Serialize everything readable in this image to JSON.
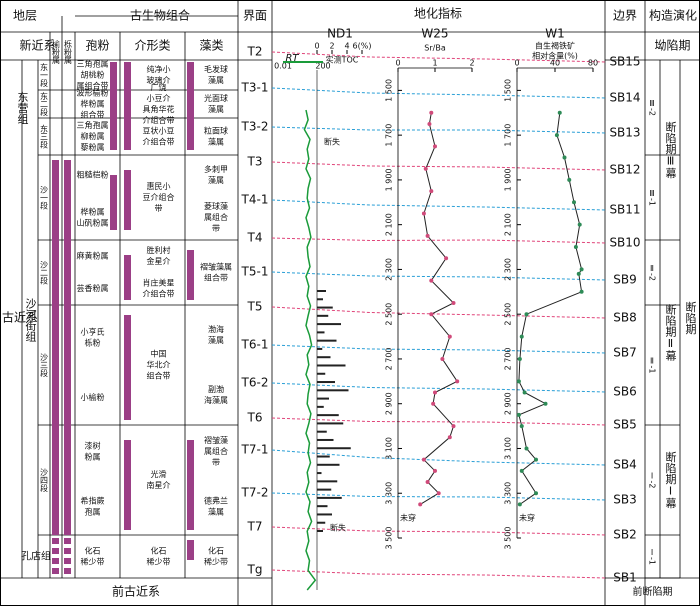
{
  "header": {
    "strata": "地层",
    "fossils": "古生物组合",
    "interface": "界面",
    "geochem": "地化指标",
    "boundary": "边界",
    "tectonic": "构造演化"
  },
  "fossil_heads": {
    "ulmi": "榆粉属",
    "querc": "栎粉属",
    "spore": "孢粉",
    "ostracod": "介形类",
    "algae": "藻类"
  },
  "strata": {
    "systems": [
      "新近系",
      "古近系",
      "前古近系"
    ],
    "formations": [
      "东营组",
      "沙河街组",
      "孔店组"
    ],
    "members": [
      "东一段",
      "东二段",
      "东三段",
      "沙一段",
      "沙二段",
      "沙三段",
      "沙四段"
    ]
  },
  "spores": [
    [
      "三角孢属",
      "胡桃粉",
      "属组合带"
    ],
    [
      "波形榆粉",
      "桦粉属",
      "组合带"
    ],
    [
      "三角孢属",
      "柳粉属",
      "藜粉属"
    ],
    [
      "粗糙桤粉"
    ],
    [
      "桦粉属",
      "山矾粉属"
    ],
    [
      "麻黄粉属"
    ],
    [
      "芸香粉属"
    ],
    [
      "小亨氏",
      "栎粉"
    ],
    [
      "小榆粉"
    ],
    [
      "漆树",
      "粉属"
    ],
    [
      "希指蕨",
      "孢属"
    ],
    [
      "化石",
      "稀少带"
    ]
  ],
  "ostracods": [
    [
      "纯净小",
      "玻璃介"
    ],
    [
      "广饶",
      "小豆介",
      "具角华花",
      "介组合带"
    ],
    [
      "豆状小豆",
      "介组合带"
    ],
    [
      "惠民小",
      "豆介组合",
      "带"
    ],
    [
      "胜利村",
      "金星介"
    ],
    [
      "肖庄美星",
      "介组合带"
    ],
    [
      "中国",
      "华北介",
      "组合带"
    ],
    [
      "光滑",
      "南星介"
    ],
    [
      "化石",
      "稀少带"
    ]
  ],
  "algae": [
    [
      "毛发球",
      "藻属"
    ],
    [
      "光面球",
      "藻属"
    ],
    [
      "粒面球",
      "藻属"
    ],
    [
      "多刺甲",
      "藻属"
    ],
    [
      "菱球藻",
      "属组合",
      "带"
    ],
    [
      "褶皱藻属",
      "组合带"
    ],
    [
      "渤海",
      "藻属"
    ],
    [
      "副渤",
      "海藻属"
    ],
    [
      "褶皱藻",
      "属组合",
      "带"
    ],
    [
      "德弗兰",
      "藻属"
    ],
    [
      "化石",
      "稀少带"
    ]
  ],
  "interfaces": [
    "T2",
    "T3-1",
    "T3-2",
    "T3",
    "T4-1",
    "T4",
    "T5-1",
    "T5",
    "T6-1",
    "T6-2",
    "T6",
    "T7-1",
    "T7-2",
    "T7",
    "Tg"
  ],
  "boundaries": [
    "SB15",
    "SB14",
    "SB13",
    "SB12",
    "SB11",
    "SB10",
    "SB9",
    "SB8",
    "SB7",
    "SB6",
    "SB5",
    "SB4",
    "SB3",
    "SB2",
    "SB1"
  ],
  "tectonic": {
    "top": "坳陷期",
    "bottom": "前断陷期",
    "stages": [
      "Ⅲ-2",
      "Ⅲ-1",
      "Ⅱ-2",
      "Ⅱ-1",
      "Ⅰ-2",
      "Ⅰ-1"
    ],
    "episodes": [
      "断陷期Ⅲ幕",
      "断陷期Ⅱ幕",
      "断陷期Ⅰ幕"
    ],
    "period": "断陷期"
  },
  "nd1": {
    "title": "ND1",
    "toc_label": "实测TOC",
    "toc_ticks": [
      0,
      2,
      4,
      {
        "value": 6,
        "label": "6(%)"
      }
    ],
    "toc_lim": [
      0,
      6
    ],
    "rt_label": "RT",
    "rt_ticks": [
      0.01,
      200
    ],
    "rt_lim": [
      0.01,
      200
    ],
    "lost": [
      "断失",
      "断失"
    ],
    "rt": [
      3,
      5,
      2,
      8,
      4,
      6,
      3,
      9,
      5,
      4,
      7,
      3,
      6,
      10,
      4,
      5,
      8,
      3,
      6,
      4,
      9,
      5,
      3,
      7,
      12,
      4,
      6,
      3,
      8,
      5,
      4,
      10,
      6,
      3,
      7,
      5,
      9,
      4,
      6,
      3,
      8,
      5,
      12,
      4,
      6,
      3,
      7,
      5,
      30,
      4
    ],
    "toc": [
      1.2,
      0.8,
      2.1,
      1.5,
      3.2,
      1.0,
      2.6,
      0.7,
      1.8,
      3.8,
      1.1,
      2.4,
      4.2,
      1.6,
      0.9,
      2.9,
      3.5,
      1.3,
      2.2,
      4.5,
      1.7,
      3.0,
      0.6,
      2.7,
      1.9,
      3.3,
      1.4,
      2.0,
      1.1,
      0.8
    ]
  },
  "w25": {
    "title": "W25",
    "xlabel": "Sr/Ba",
    "xlim": [
      0,
      2
    ],
    "xticks": [
      0,
      1,
      2
    ],
    "ylim": [
      1400,
      3500
    ],
    "yticks": [
      {
        "value": 1500,
        "label": "1 500"
      },
      {
        "value": 1700,
        "label": "1 700"
      },
      {
        "value": 1900,
        "label": "1 900"
      },
      {
        "value": 2100,
        "label": "2 100"
      },
      {
        "value": 2300,
        "label": "2 300"
      },
      {
        "value": 2500,
        "label": "2 500"
      },
      {
        "value": 2700,
        "label": "2 700"
      },
      {
        "value": 2900,
        "label": "2 900"
      },
      {
        "value": 3100,
        "label": "3 100"
      },
      {
        "value": 3300,
        "label": "3 300"
      },
      {
        "value": 3500,
        "label": "3 500"
      }
    ],
    "depth": [
      1600,
      1650,
      1750,
      1850,
      1950,
      2050,
      2150,
      2250,
      2350,
      2450,
      2500,
      2600,
      2700,
      2800,
      2850,
      2900,
      3000,
      3050,
      3150,
      3200,
      3250,
      3300,
      3350
    ],
    "values": [
      0.9,
      0.85,
      1.0,
      0.75,
      0.9,
      0.7,
      0.8,
      1.3,
      0.9,
      1.5,
      0.9,
      1.4,
      1.2,
      1.6,
      1.0,
      0.95,
      1.5,
      1.4,
      0.7,
      1.0,
      0.8,
      1.1,
      0.6
    ],
    "note": "未穿"
  },
  "w1": {
    "title": "W1",
    "xlabel": [
      "自生褐铁矿",
      "相对含量(%)"
    ],
    "xlim": [
      0,
      80
    ],
    "xticks": [
      0,
      40,
      80
    ],
    "ylim": [
      1400,
      3500
    ],
    "yticks": [
      {
        "value": 1500,
        "label": "1 500"
      },
      {
        "value": 1700,
        "label": "1 700"
      },
      {
        "value": 1900,
        "label": "1 900"
      },
      {
        "value": 2100,
        "label": "2 100"
      },
      {
        "value": 2300,
        "label": "2 300"
      },
      {
        "value": 2500,
        "label": "2 500"
      },
      {
        "value": 2700,
        "label": "2 700"
      },
      {
        "value": 2900,
        "label": "2 900"
      },
      {
        "value": 3100,
        "label": "3 100"
      },
      {
        "value": 3300,
        "label": "3 300"
      },
      {
        "value": 3500,
        "label": "3 500"
      }
    ],
    "depth": [
      1600,
      1700,
      1800,
      1900,
      2000,
      2100,
      2200,
      2300,
      2320,
      2400,
      2500,
      2600,
      2700,
      2800,
      2850,
      2900,
      2950,
      3000,
      3100,
      3150,
      3200,
      3300,
      3350
    ],
    "values": [
      45,
      42,
      50,
      55,
      60,
      66,
      62,
      68,
      65,
      68,
      10,
      5,
      3,
      2,
      8,
      30,
      2,
      5,
      10,
      20,
      5,
      20,
      3
    ],
    "note": "未穿"
  }
}
